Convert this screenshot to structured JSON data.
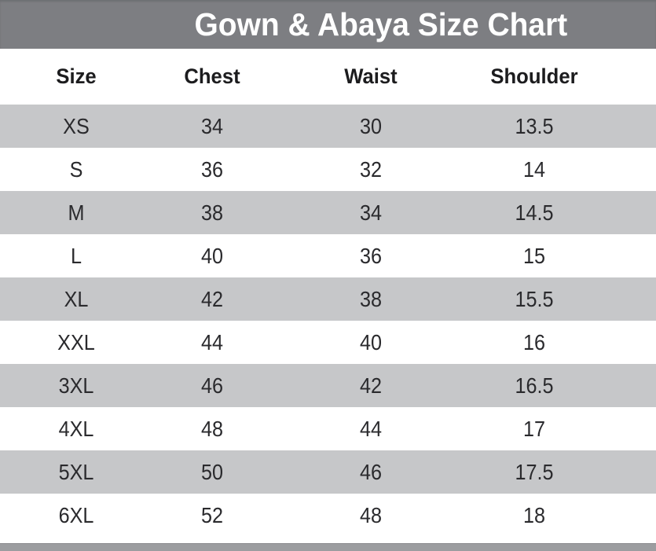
{
  "title": "Gown & Abaya Size Chart",
  "table": {
    "headers": [
      "Size",
      "Chest",
      "Waist",
      "Shoulder"
    ],
    "rows": [
      [
        "XS",
        "34",
        "30",
        "13.5"
      ],
      [
        "S",
        "36",
        "32",
        "14"
      ],
      [
        "M",
        "38",
        "34",
        "14.5"
      ],
      [
        "L",
        "40",
        "36",
        "15"
      ],
      [
        "XL",
        "42",
        "38",
        "15.5"
      ],
      [
        "XXL",
        "44",
        "40",
        "16"
      ],
      [
        "3XL",
        "46",
        "42",
        "16.5"
      ],
      [
        "4XL",
        "48",
        "44",
        "17"
      ],
      [
        "5XL",
        "50",
        "46",
        "17.5"
      ],
      [
        "6XL",
        "52",
        "48",
        "18"
      ]
    ]
  },
  "colors": {
    "banner_background": "#7d7e82",
    "row_stripe": "#c6c7c9",
    "footer_bar": "#9c9da0",
    "title_text": "#ffffff",
    "body_text": "#2a2a2d"
  },
  "chart_data": {
    "type": "table",
    "title": "Gown & Abaya Size Chart",
    "columns": [
      "Size",
      "Chest",
      "Waist",
      "Shoulder"
    ],
    "rows": [
      {
        "size": "XS",
        "chest": 34,
        "waist": 30,
        "shoulder": 13.5
      },
      {
        "size": "S",
        "chest": 36,
        "waist": 32,
        "shoulder": 14
      },
      {
        "size": "M",
        "chest": 38,
        "waist": 34,
        "shoulder": 14.5
      },
      {
        "size": "L",
        "chest": 40,
        "waist": 36,
        "shoulder": 15
      },
      {
        "size": "XL",
        "chest": 42,
        "waist": 38,
        "shoulder": 15.5
      },
      {
        "size": "XXL",
        "chest": 44,
        "waist": 40,
        "shoulder": 16
      },
      {
        "size": "3XL",
        "chest": 46,
        "waist": 42,
        "shoulder": 16.5
      },
      {
        "size": "4XL",
        "chest": 48,
        "waist": 44,
        "shoulder": 17
      },
      {
        "size": "5XL",
        "chest": 50,
        "waist": 46,
        "shoulder": 17.5
      },
      {
        "size": "6XL",
        "chest": 52,
        "waist": 48,
        "shoulder": 18
      }
    ],
    "layout": {
      "striped_rows": true,
      "stripe_pattern": "first data row shaded, alternating",
      "header_position": "top"
    }
  }
}
